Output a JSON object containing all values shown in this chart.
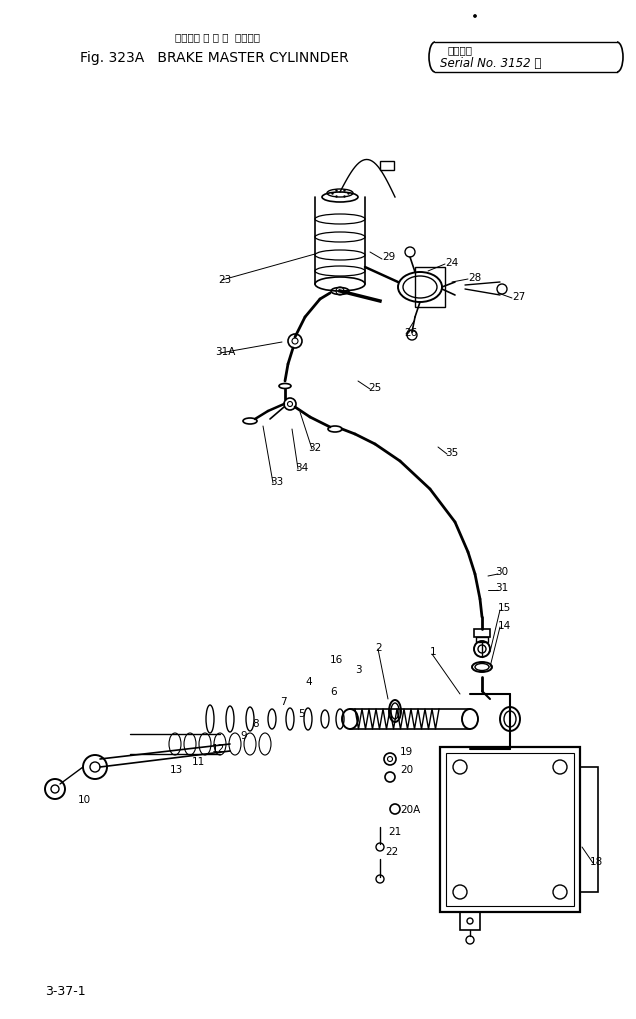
{
  "title_japanese": "ブレーキ マ ス タ  シリンダ",
  "title_english": "Fig. 323A   BRAKE MASTER CYLINNDER",
  "serial_top": "適用号機",
  "serial_label": "Serial No. 3152 ～",
  "page_label": "3-37-1",
  "bg_color": "#ffffff",
  "lc": "#000000",
  "figsize": [
    6.36,
    10.2
  ],
  "dpi": 100
}
